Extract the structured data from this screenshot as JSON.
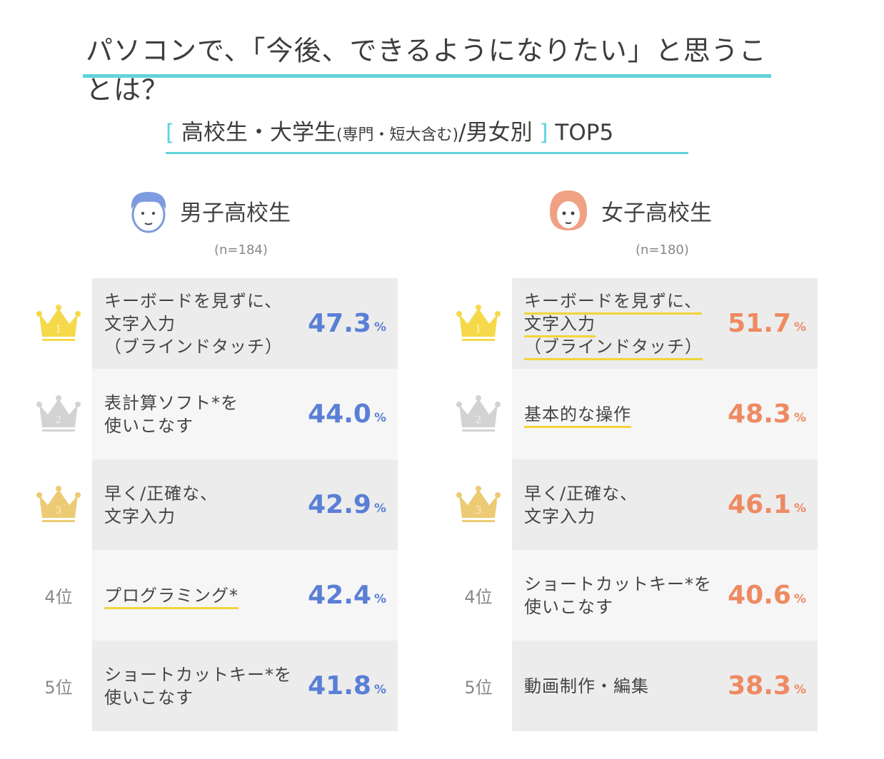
{
  "title": "パソコンで、「今後、できるようになりたい」と思うことは？",
  "subtitle": {
    "open": "[",
    "main": "高校生・大学生",
    "paren": "(専門・短大含む)",
    "rest": "/男女別",
    "close": "]",
    "top": "TOP5"
  },
  "colors": {
    "accent": "#5fd3dc",
    "male": "#5a7fd6",
    "female": "#ee8a62",
    "underline": "#f2d43a"
  },
  "percent": "%",
  "male": {
    "name": "男子高校生",
    "n": "(n=184)",
    "icon": "boy-face-icon",
    "items": [
      {
        "rank": "1",
        "lines": [
          "キーボードを見ずに、",
          "文字入力",
          "（ブラインドタッチ）"
        ],
        "value": "47.3",
        "ul": false
      },
      {
        "rank": "2",
        "lines": [
          "表計算ソフト*を",
          "使いこなす"
        ],
        "value": "44.0",
        "ul": false
      },
      {
        "rank": "3",
        "lines": [
          "早く/正確な、",
          "文字入力"
        ],
        "value": "42.9",
        "ul": false
      },
      {
        "rank": "4位",
        "lines": [
          "プログラミング*"
        ],
        "value": "42.4",
        "ul": true
      },
      {
        "rank": "5位",
        "lines": [
          "ショートカットキー*を",
          "使いこなす"
        ],
        "value": "41.8",
        "ul": false
      }
    ]
  },
  "female": {
    "name": "女子高校生",
    "n": "(n=180)",
    "icon": "girl-face-icon",
    "items": [
      {
        "rank": "1",
        "lines": [
          "キーボードを見ずに、",
          "文字入力",
          "（ブラインドタッチ）"
        ],
        "value": "51.7",
        "ul": true
      },
      {
        "rank": "2",
        "lines": [
          "基本的な操作"
        ],
        "value": "48.3",
        "ul": true
      },
      {
        "rank": "3",
        "lines": [
          "早く/正確な、",
          "文字入力"
        ],
        "value": "46.1",
        "ul": false
      },
      {
        "rank": "4位",
        "lines": [
          "ショートカットキー*を",
          "使いこなす"
        ],
        "value": "40.6",
        "ul": false
      },
      {
        "rank": "5位",
        "lines": [
          "動画制作・編集"
        ],
        "value": "38.3",
        "ul": false
      }
    ]
  }
}
